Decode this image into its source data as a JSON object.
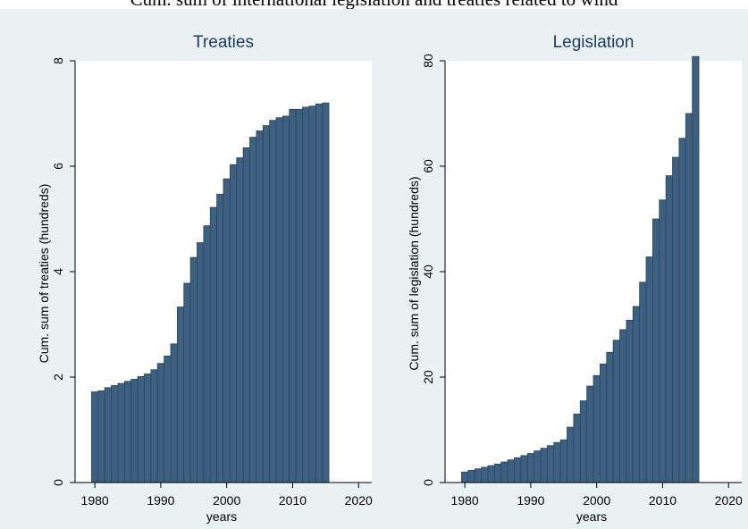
{
  "caption": "Cum. sum of international legislation and treaties related to wind",
  "colors": {
    "outer_bg": "#eaf2f3",
    "plot_bg": "#ffffff",
    "bar_fill": "#3d5f80",
    "bar_edge": "#2a4662",
    "axis": "#000000"
  },
  "chart_data": [
    {
      "type": "bar",
      "title": "Treaties",
      "xlabel": "years",
      "ylabel": "Cum. sum of treaties (hundreds)",
      "xlim": [
        1977,
        2022
      ],
      "ylim": [
        0,
        8
      ],
      "xticks": [
        1980,
        1990,
        2000,
        2010,
        2020
      ],
      "yticks": [
        0,
        2,
        4,
        6,
        8
      ],
      "grid": false,
      "x": [
        1980,
        1981,
        1982,
        1983,
        1984,
        1985,
        1986,
        1987,
        1988,
        1989,
        1990,
        1991,
        1992,
        1993,
        1994,
        1995,
        1996,
        1997,
        1998,
        1999,
        2000,
        2001,
        2002,
        2003,
        2004,
        2005,
        2006,
        2007,
        2008,
        2009,
        2010,
        2011,
        2012,
        2013,
        2014,
        2015
      ],
      "values": [
        1.72,
        1.74,
        1.8,
        1.84,
        1.88,
        1.92,
        1.96,
        2.01,
        2.06,
        2.14,
        2.26,
        2.4,
        2.63,
        3.33,
        3.78,
        4.27,
        4.55,
        4.87,
        5.22,
        5.47,
        5.76,
        6.03,
        6.16,
        6.35,
        6.55,
        6.67,
        6.77,
        6.87,
        6.92,
        6.95,
        7.08,
        7.08,
        7.12,
        7.14,
        7.18,
        7.2
      ]
    },
    {
      "type": "bar",
      "title": "Legislation",
      "xlabel": "years",
      "ylabel": "Cum. sum of legislation (hundreds)",
      "xlim": [
        1977,
        2022
      ],
      "ylim": [
        0,
        80
      ],
      "xticks": [
        1980,
        1990,
        2000,
        2010,
        2020
      ],
      "yticks": [
        0,
        20,
        40,
        60,
        80
      ],
      "grid": false,
      "x": [
        1980,
        1981,
        1982,
        1983,
        1984,
        1985,
        1986,
        1987,
        1988,
        1989,
        1990,
        1991,
        1992,
        1993,
        1994,
        1995,
        1996,
        1997,
        1998,
        1999,
        2000,
        2001,
        2002,
        2003,
        2004,
        2005,
        2006,
        2007,
        2008,
        2009,
        2010,
        2011,
        2012,
        2013,
        2014,
        2015
      ],
      "values": [
        2.0,
        2.3,
        2.6,
        2.9,
        3.2,
        3.5,
        3.9,
        4.3,
        4.7,
        5.1,
        5.5,
        6.0,
        6.5,
        7.0,
        7.6,
        8.1,
        10.5,
        13.0,
        15.5,
        18.3,
        20.3,
        22.5,
        24.7,
        27.0,
        29.0,
        30.8,
        33.4,
        38.0,
        42.8,
        50.0,
        53.6,
        58.2,
        61.7,
        65.3,
        70.0,
        80.8
      ]
    }
  ]
}
